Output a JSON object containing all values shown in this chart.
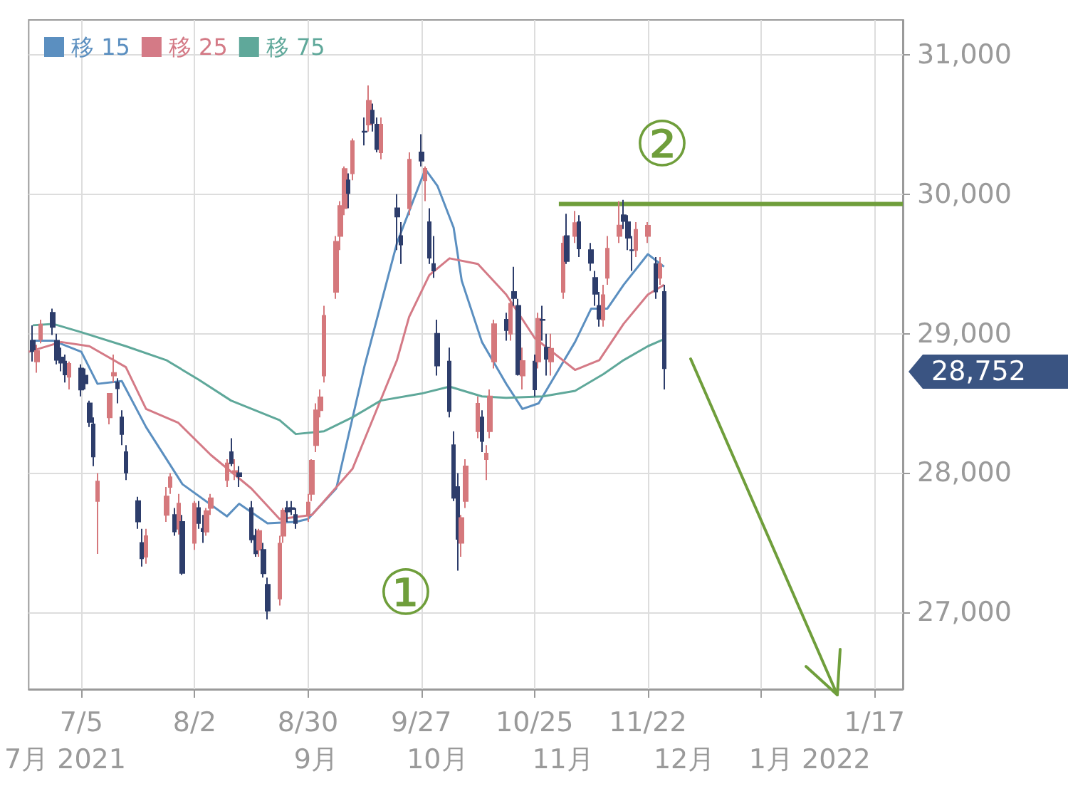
{
  "chart_data": {
    "type": "candlestick",
    "grid": true,
    "legend": "top left",
    "marker": "none",
    "x": [
      "2021-06-23",
      "2021-06-24",
      "2021-06-25",
      "2021-06-28",
      "2021-06-29",
      "2021-06-30",
      "2021-07-01",
      "2021-07-02",
      "2021-07-05",
      "2021-07-06",
      "2021-07-07",
      "2021-07-08",
      "2021-07-09",
      "2021-07-12",
      "2021-07-13",
      "2021-07-14",
      "2021-07-15",
      "2021-07-16",
      "2021-07-19",
      "2021-07-20",
      "2021-07-21",
      "2021-07-26",
      "2021-07-27",
      "2021-07-28",
      "2021-07-29",
      "2021-07-30",
      "2021-08-02",
      "2021-08-03",
      "2021-08-04",
      "2021-08-05",
      "2021-08-06",
      "2021-08-10",
      "2021-08-11",
      "2021-08-12",
      "2021-08-13",
      "2021-08-16",
      "2021-08-17",
      "2021-08-18",
      "2021-08-19",
      "2021-08-20",
      "2021-08-23",
      "2021-08-24",
      "2021-08-25",
      "2021-08-26",
      "2021-08-27",
      "2021-08-30",
      "2021-08-31",
      "2021-09-01",
      "2021-09-02",
      "2021-09-03",
      "2021-09-06",
      "2021-09-07",
      "2021-09-08",
      "2021-09-09",
      "2021-09-10",
      "2021-09-13",
      "2021-09-14",
      "2021-09-15",
      "2021-09-16",
      "2021-09-17",
      "2021-09-21",
      "2021-09-22",
      "2021-09-24",
      "2021-09-27",
      "2021-09-28",
      "2021-09-29",
      "2021-09-30",
      "2021-10-01",
      "2021-10-04",
      "2021-10-05",
      "2021-10-06",
      "2021-10-07",
      "2021-10-08",
      "2021-10-11",
      "2021-10-12",
      "2021-10-13",
      "2021-10-14",
      "2021-10-15",
      "2021-10-18",
      "2021-10-19",
      "2021-10-20",
      "2021-10-21",
      "2021-10-22",
      "2021-10-25",
      "2021-10-26",
      "2021-10-27",
      "2021-10-28",
      "2021-10-29",
      "2021-11-01",
      "2021-11-02",
      "2021-11-04",
      "2021-11-05",
      "2021-11-08",
      "2021-11-09",
      "2021-11-10",
      "2021-11-11",
      "2021-11-12",
      "2021-11-15",
      "2021-11-16",
      "2021-11-17",
      "2021-11-18",
      "2021-11-19",
      "2021-11-22",
      "2021-11-24",
      "2021-11-25",
      "2021-11-26"
    ],
    "ohlc": [
      [
        28950,
        29060,
        28800,
        28874
      ],
      [
        28800,
        28920,
        28720,
        28875
      ],
      [
        28960,
        29100,
        28930,
        29066
      ],
      [
        29150,
        29180,
        28990,
        29048
      ],
      [
        28950,
        29000,
        28780,
        28812
      ],
      [
        28830,
        28900,
        28730,
        28791
      ],
      [
        28800,
        28850,
        28650,
        28707
      ],
      [
        28690,
        28800,
        28600,
        28783
      ],
      [
        28750,
        28780,
        28550,
        28598
      ],
      [
        28700,
        28750,
        28600,
        28643
      ],
      [
        28500,
        28520,
        28330,
        28366
      ],
      [
        28350,
        28400,
        28050,
        28118
      ],
      [
        27800,
        28000,
        27420,
        27940
      ],
      [
        28400,
        28570,
        28350,
        28569
      ],
      [
        28700,
        28850,
        28650,
        28718
      ],
      [
        28650,
        28680,
        28500,
        28608
      ],
      [
        28400,
        28450,
        28200,
        28279
      ],
      [
        28150,
        28200,
        27950,
        28003
      ],
      [
        27800,
        27830,
        27600,
        27652
      ],
      [
        27500,
        27600,
        27330,
        27388
      ],
      [
        27400,
        27600,
        27350,
        27548
      ],
      [
        27700,
        27900,
        27650,
        27833
      ],
      [
        27900,
        28000,
        27850,
        27970
      ],
      [
        27700,
        27750,
        27550,
        27581
      ],
      [
        27600,
        27850,
        27560,
        27782
      ],
      [
        27650,
        27700,
        27270,
        27283
      ],
      [
        27500,
        27800,
        27450,
        27781
      ],
      [
        27750,
        27800,
        27600,
        27641
      ],
      [
        27600,
        27700,
        27500,
        27584
      ],
      [
        27580,
        27750,
        27550,
        27728
      ],
      [
        27750,
        27850,
        27700,
        27820
      ],
      [
        27950,
        28100,
        27900,
        28070
      ],
      [
        28150,
        28250,
        28050,
        28070
      ],
      [
        28000,
        28100,
        27950,
        28015
      ],
      [
        28000,
        28050,
        27900,
        27977
      ],
      [
        27750,
        27800,
        27500,
        27523
      ],
      [
        27550,
        27600,
        27400,
        27424
      ],
      [
        27450,
        27600,
        27400,
        27585
      ],
      [
        27450,
        27500,
        27250,
        27281
      ],
      [
        27200,
        27250,
        26950,
        27013
      ],
      [
        27100,
        27550,
        27050,
        27494
      ],
      [
        27550,
        27750,
        27500,
        27732
      ],
      [
        27750,
        27800,
        27650,
        27724
      ],
      [
        27750,
        27800,
        27700,
        27742
      ],
      [
        27700,
        27750,
        27600,
        27641
      ],
      [
        27700,
        27850,
        27650,
        27789
      ],
      [
        27850,
        28100,
        27800,
        28089
      ],
      [
        28200,
        28500,
        28150,
        28451
      ],
      [
        28450,
        28600,
        28400,
        28543
      ],
      [
        28700,
        29200,
        28650,
        29128
      ],
      [
        29300,
        29700,
        29250,
        29659
      ],
      [
        29700,
        29950,
        29600,
        29916
      ],
      [
        29900,
        30200,
        29850,
        30181
      ],
      [
        30100,
        30150,
        29900,
        30008
      ],
      [
        30150,
        30400,
        30100,
        30381
      ],
      [
        30450,
        30550,
        30350,
        30447
      ],
      [
        30500,
        30780,
        30450,
        30670
      ],
      [
        30600,
        30650,
        30450,
        30511
      ],
      [
        30500,
        30550,
        30300,
        30323
      ],
      [
        30300,
        30550,
        30250,
        30500
      ],
      [
        29900,
        30000,
        29600,
        29839
      ],
      [
        29700,
        29800,
        29500,
        29639
      ],
      [
        29900,
        30300,
        29850,
        30248
      ],
      [
        30300,
        30430,
        30200,
        30240
      ],
      [
        30100,
        30200,
        29950,
        30183
      ],
      [
        29800,
        29900,
        29500,
        29544
      ],
      [
        29500,
        29700,
        29400,
        29452
      ],
      [
        29000,
        29100,
        28700,
        28771
      ],
      [
        28800,
        28900,
        28400,
        28444
      ],
      [
        28200,
        28300,
        27800,
        27822
      ],
      [
        27900,
        28000,
        27300,
        27528
      ],
      [
        27500,
        27700,
        27400,
        27678
      ],
      [
        27800,
        28100,
        27750,
        28048
      ],
      [
        28300,
        28550,
        28250,
        28498
      ],
      [
        28400,
        28450,
        28150,
        28230
      ],
      [
        28100,
        28200,
        27950,
        28140
      ],
      [
        28300,
        28600,
        28250,
        28550
      ],
      [
        28800,
        29100,
        28750,
        29068
      ],
      [
        29100,
        29150,
        28950,
        29025
      ],
      [
        29000,
        29250,
        28950,
        29215
      ],
      [
        29300,
        29480,
        29200,
        29255
      ],
      [
        29200,
        29250,
        28700,
        28708
      ],
      [
        28700,
        28900,
        28600,
        28804
      ],
      [
        28800,
        28850,
        28550,
        28600
      ],
      [
        28800,
        29150,
        28750,
        29106
      ],
      [
        29100,
        29200,
        28950,
        29098
      ],
      [
        28900,
        29000,
        28700,
        28820
      ],
      [
        28800,
        29000,
        28700,
        28892
      ],
      [
        29300,
        29700,
        29250,
        29647
      ],
      [
        29700,
        29860,
        29500,
        29520
      ],
      [
        29700,
        29880,
        29650,
        29794
      ],
      [
        29800,
        29850,
        29550,
        29611
      ],
      [
        29600,
        29650,
        29450,
        29507
      ],
      [
        29400,
        29450,
        29200,
        29285
      ],
      [
        29200,
        29300,
        29050,
        29106
      ],
      [
        29100,
        29350,
        29050,
        29277
      ],
      [
        29400,
        29700,
        29350,
        29609
      ],
      [
        29700,
        29950,
        29650,
        29776
      ],
      [
        29850,
        29960,
        29750,
        29808
      ],
      [
        29800,
        29850,
        29600,
        29688
      ],
      [
        29600,
        29700,
        29450,
        29598
      ],
      [
        29600,
        29800,
        29550,
        29745
      ],
      [
        29700,
        29800,
        29650,
        29774
      ],
      [
        29500,
        29550,
        29250,
        29302
      ],
      [
        29400,
        29550,
        29350,
        29499
      ],
      [
        29300,
        29350,
        28600,
        28752
      ]
    ],
    "colors": [
      "#2d3d6b",
      "#d5787c",
      "#d5787c",
      "#2d3d6b",
      "#2d3d6b",
      "#2d3d6b",
      "#2d3d6b",
      "#d5787c",
      "#2d3d6b",
      "#2d3d6b",
      "#2d3d6b",
      "#2d3d6b",
      "#d5787c",
      "#d5787c",
      "#d5787c",
      "#2d3d6b",
      "#2d3d6b",
      "#2d3d6b",
      "#2d3d6b",
      "#2d3d6b",
      "#d5787c",
      "#d5787c",
      "#d5787c",
      "#2d3d6b",
      "#d5787c",
      "#2d3d6b",
      "#d5787c",
      "#2d3d6b",
      "#2d3d6b",
      "#d5787c",
      "#d5787c",
      "#d5787c",
      "#2d3d6b",
      "#d5787c",
      "#2d3d6b",
      "#2d3d6b",
      "#2d3d6b",
      "#d5787c",
      "#2d3d6b",
      "#2d3d6b",
      "#d5787c",
      "#d5787c",
      "#2d3d6b",
      "#2d3d6b",
      "#2d3d6b",
      "#d5787c",
      "#d5787c",
      "#d5787c",
      "#d5787c",
      "#d5787c",
      "#d5787c",
      "#d5787c",
      "#d5787c",
      "#2d3d6b",
      "#d5787c",
      "#2d3d6b",
      "#d5787c",
      "#2d3d6b",
      "#2d3d6b",
      "#d5787c",
      "#2d3d6b",
      "#2d3d6b",
      "#d5787c",
      "#2d3d6b",
      "#d5787c",
      "#2d3d6b",
      "#2d3d6b",
      "#2d3d6b",
      "#2d3d6b",
      "#2d3d6b",
      "#2d3d6b",
      "#d5787c",
      "#d5787c",
      "#d5787c",
      "#2d3d6b",
      "#d5787c",
      "#d5787c",
      "#d5787c",
      "#2d3d6b",
      "#d5787c",
      "#2d3d6b",
      "#2d3d6b",
      "#d5787c",
      "#2d3d6b",
      "#d5787c",
      "#2d3d6b",
      "#2d3d6b",
      "#d5787c",
      "#d5787c",
      "#2d3d6b",
      "#d5787c",
      "#2d3d6b",
      "#2d3d6b",
      "#2d3d6b",
      "#2d3d6b",
      "#d5787c",
      "#d5787c",
      "#d5787c",
      "#2d3d6b",
      "#2d3d6b",
      "#2d3d6b",
      "#d5787c",
      "#d5787c",
      "#2d3d6b",
      "#d5787c",
      "#2d3d6b"
    ],
    "series": [
      {
        "name": "移 15",
        "type": "line",
        "color": "#5b8fc0",
        "x": [
          "2021-06-23",
          "2021-06-28",
          "2021-07-05",
          "2021-07-09",
          "2021-07-15",
          "2021-07-21",
          "2021-07-30",
          "2021-08-10",
          "2021-08-13",
          "2021-08-20",
          "2021-08-27",
          "2021-08-30",
          "2021-09-06",
          "2021-09-13",
          "2021-09-21",
          "2021-09-28",
          "2021-10-01",
          "2021-10-05",
          "2021-10-07",
          "2021-10-12",
          "2021-10-18",
          "2021-10-22",
          "2021-10-26",
          "2021-11-04",
          "2021-11-08",
          "2021-11-12",
          "2021-11-16",
          "2021-11-22",
          "2021-11-26"
        ],
        "values": [
          28950,
          28950,
          28870,
          28640,
          28660,
          28330,
          27920,
          27690,
          27780,
          27640,
          27650,
          27670,
          27890,
          28770,
          29650,
          30180,
          30060,
          29760,
          29380,
          28940,
          28640,
          28460,
          28500,
          28940,
          29180,
          29180,
          29350,
          29570,
          29480
        ]
      },
      {
        "name": "移 25",
        "type": "line",
        "color": "#d47a86",
        "x": [
          "2021-06-22",
          "2021-06-30",
          "2021-07-07",
          "2021-07-16",
          "2021-07-21",
          "2021-07-29",
          "2021-08-06",
          "2021-08-16",
          "2021-08-23",
          "2021-08-31",
          "2021-09-10",
          "2021-09-21",
          "2021-09-24",
          "2021-09-29",
          "2021-10-04",
          "2021-10-11",
          "2021-10-18",
          "2021-10-25",
          "2021-11-04",
          "2021-11-10",
          "2021-11-16",
          "2021-11-22",
          "2021-11-26"
        ],
        "values": [
          28870,
          28940,
          28910,
          28760,
          28460,
          28360,
          28130,
          27890,
          27670,
          27700,
          28030,
          28810,
          29120,
          29420,
          29540,
          29500,
          29280,
          28970,
          28740,
          28810,
          29070,
          29280,
          29350
        ]
      },
      {
        "name": "移 75",
        "type": "line",
        "color": "#5fa89a",
        "x": [
          "2021-06-23",
          "2021-06-28",
          "2021-07-05",
          "2021-07-16",
          "2021-07-26",
          "2021-08-03",
          "2021-08-11",
          "2021-08-23",
          "2021-08-27",
          "2021-09-03",
          "2021-09-10",
          "2021-09-17",
          "2021-09-27",
          "2021-10-04",
          "2021-10-12",
          "2021-10-18",
          "2021-10-27",
          "2021-11-04",
          "2021-11-11",
          "2021-11-16",
          "2021-11-22",
          "2021-11-26"
        ],
        "values": [
          29060,
          29070,
          29010,
          28910,
          28810,
          28670,
          28520,
          28380,
          28280,
          28300,
          28400,
          28520,
          28570,
          28620,
          28550,
          28540,
          28550,
          28590,
          28710,
          28810,
          28910,
          28960
        ]
      },
      {
        "type": "line",
        "color": "#6f9e3b",
        "x": [
          "2021-10-31",
          "2022-01-24"
        ],
        "values": [
          29930,
          29930
        ]
      }
    ],
    "xlim": [
      "2021-06-22",
      "2022-01-24"
    ],
    "xticks": [
      {
        "value": "2021-07-05",
        "label": "7/5"
      },
      {
        "value": "2021-08-02",
        "label": "8/2"
      },
      {
        "value": "2021-08-30",
        "label": "8/30"
      },
      {
        "value": "2021-09-27",
        "label": "9/27"
      },
      {
        "value": "2021-10-25",
        "label": "10/25"
      },
      {
        "value": "2021-11-22",
        "label": "11/22"
      },
      {
        "value": "2021-12-20",
        "label": null
      },
      {
        "value": "2022-01-17",
        "label": "1/17"
      }
    ],
    "x2lim": [
      "2021-06-22",
      "2022-01-24"
    ],
    "x2ticks": [
      {
        "value": "2021-07-01",
        "label": "7月 2021"
      },
      {
        "value": "2021-09-01",
        "label": "9月"
      },
      {
        "value": "2021-10-01",
        "label": "10月"
      },
      {
        "value": "2021-11-01",
        "label": "11月"
      },
      {
        "value": "2021-12-01",
        "label": "12月"
      },
      {
        "value": "2022-01-01",
        "label": "1月 2022"
      }
    ],
    "ylim": [
      26450,
      31250
    ],
    "yticks": [
      {
        "value": 27000,
        "label": "27,000"
      },
      {
        "value": 28000,
        "label": "28,000"
      },
      {
        "value": 29000,
        "label": "29,000"
      },
      {
        "value": 30000,
        "label": "30,000"
      },
      {
        "value": 31000,
        "label": "31,000"
      }
    ],
    "annotations": [
      "②",
      "①",
      "28,752"
    ]
  }
}
